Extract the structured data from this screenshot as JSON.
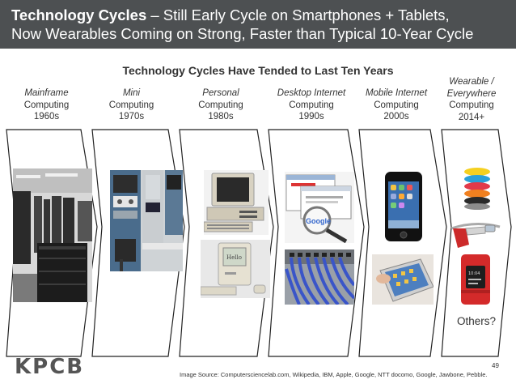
{
  "header": {
    "title_bold": "Technology Cycles",
    "title_rest": " – Still Early Cycle on Smartphones + Tablets,",
    "title_line2": "Now Wearables Coming on Strong, Faster than Typical 10-Year Cycle"
  },
  "subtitle": "Technology Cycles Have Tended to Last Ten Years",
  "eras": [
    {
      "italic": "Mainframe",
      "name": "Computing",
      "period": "1960s"
    },
    {
      "italic": "Mini",
      "name": "Computing",
      "period": "1970s"
    },
    {
      "italic": "Personal",
      "name": "Computing",
      "period": "1980s"
    },
    {
      "italic": "Desktop Internet",
      "name": "Computing",
      "period": "1990s"
    },
    {
      "italic": "Mobile Internet",
      "name": "Computing",
      "period": "2000s"
    },
    {
      "italic": "Wearable /",
      "italic2": "Everywhere",
      "name": "Computing",
      "period": "2014+"
    }
  ],
  "others": "Others?",
  "footer": {
    "logo": "KPCB",
    "source": "Image Source: Computersciencelab.com, Wikipedia, IBM, Apple, Google, NTT docomo, Google, Jawbone, Pebble.",
    "page": "49"
  },
  "colors": {
    "header_bg": "#4d5052",
    "text": "#333333",
    "chevron_stroke": "#222222"
  }
}
